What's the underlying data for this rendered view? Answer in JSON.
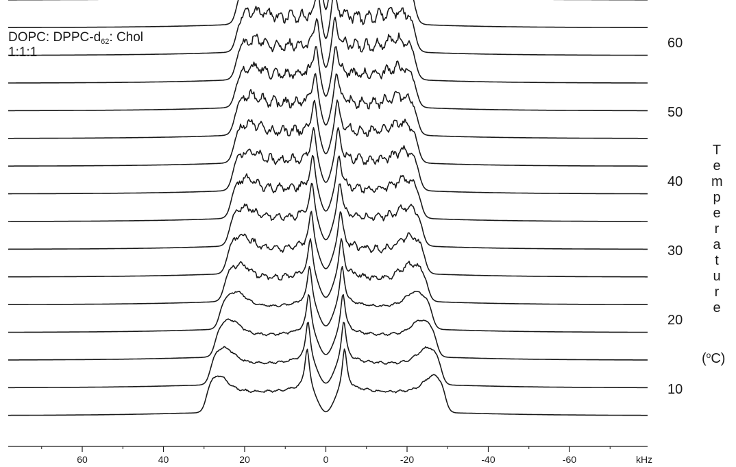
{
  "chart_data": {
    "type": "line",
    "title": "",
    "sample": {
      "name_parts": [
        "DOPC: DPPC-d",
        "62",
        ": Chol"
      ],
      "ratio": "1:1:1"
    },
    "xlabel": "kHz",
    "xlim": [
      78,
      -80
    ],
    "x_ticks": [
      60,
      40,
      20,
      0,
      -20,
      -40,
      -60
    ],
    "x_tick_labels": [
      "60",
      "40",
      "20",
      "0",
      "-20",
      "-40",
      "-60"
    ],
    "ylabel_letters": [
      "T",
      "e",
      "m",
      "p",
      "e",
      "r",
      "a",
      "t",
      "u",
      "r",
      "e"
    ],
    "ylabel_unit": {
      "open": "(",
      "sup": "o",
      "rest": "C)"
    },
    "temperature_ticks": [
      {
        "label": "60",
        "value": 60
      },
      {
        "label": "50",
        "value": 50
      },
      {
        "label": "40",
        "value": 40
      },
      {
        "label": "30",
        "value": 30
      },
      {
        "label": "20",
        "value": 20
      },
      {
        "label": "10",
        "value": 10
      }
    ],
    "series_note": "stacked 2H NMR spectra, one trace per temperature (lowest trace = lowest temperature)",
    "series": [
      {
        "temperature": 6,
        "outer_edge_khz": 29.5,
        "outer_horn_khz": 26.5,
        "inner_peak_khz": 4.6
      },
      {
        "temperature": 10,
        "outer_edge_khz": 28.5,
        "outer_horn_khz": 25.0,
        "inner_peak_khz": 4.4
      },
      {
        "temperature": 14,
        "outer_edge_khz": 27.3,
        "outer_horn_khz": 23.5,
        "inner_peak_khz": 4.2
      },
      {
        "temperature": 18,
        "outer_edge_khz": 26.2,
        "outer_horn_khz": 22.0,
        "inner_peak_khz": 4.0
      },
      {
        "temperature": 22,
        "outer_edge_khz": 25.1,
        "outer_horn_khz": 21.0,
        "inner_peak_khz": 3.8
      },
      {
        "temperature": 26,
        "outer_edge_khz": 24.4,
        "outer_horn_khz": 20.5,
        "inner_peak_khz": 3.6
      },
      {
        "temperature": 30,
        "outer_edge_khz": 23.8,
        "outer_horn_khz": 20.0,
        "inner_peak_khz": 3.4
      },
      {
        "temperature": 34,
        "outer_edge_khz": 23.4,
        "outer_horn_khz": 19.5,
        "inner_peak_khz": 3.2
      },
      {
        "temperature": 38,
        "outer_edge_khz": 23.0,
        "outer_horn_khz": 19.0,
        "inner_peak_khz": 3.0
      },
      {
        "temperature": 42,
        "outer_edge_khz": 22.7,
        "outer_horn_khz": 18.5,
        "inner_peak_khz": 2.8
      },
      {
        "temperature": 46,
        "outer_edge_khz": 22.5,
        "outer_horn_khz": 18.0,
        "inner_peak_khz": 2.6
      },
      {
        "temperature": 50,
        "outer_edge_khz": 22.3,
        "outer_horn_khz": 17.5,
        "inner_peak_khz": 2.4
      },
      {
        "temperature": 54,
        "outer_edge_khz": 22.1,
        "outer_horn_khz": 17.0,
        "inner_peak_khz": 2.2
      },
      {
        "temperature": 58,
        "outer_edge_khz": 22.0,
        "outer_horn_khz": 16.5,
        "inner_peak_khz": 2.0
      },
      {
        "temperature": 62,
        "outer_edge_khz": 21.9,
        "outer_horn_khz": 16.0,
        "inner_peak_khz": 1.8
      },
      {
        "temperature": 66,
        "outer_edge_khz": 21.8,
        "outer_horn_khz": 15.5,
        "inner_peak_khz": 1.6
      }
    ],
    "grid": false,
    "legend": "none",
    "line_color": "#1a1a1a"
  }
}
